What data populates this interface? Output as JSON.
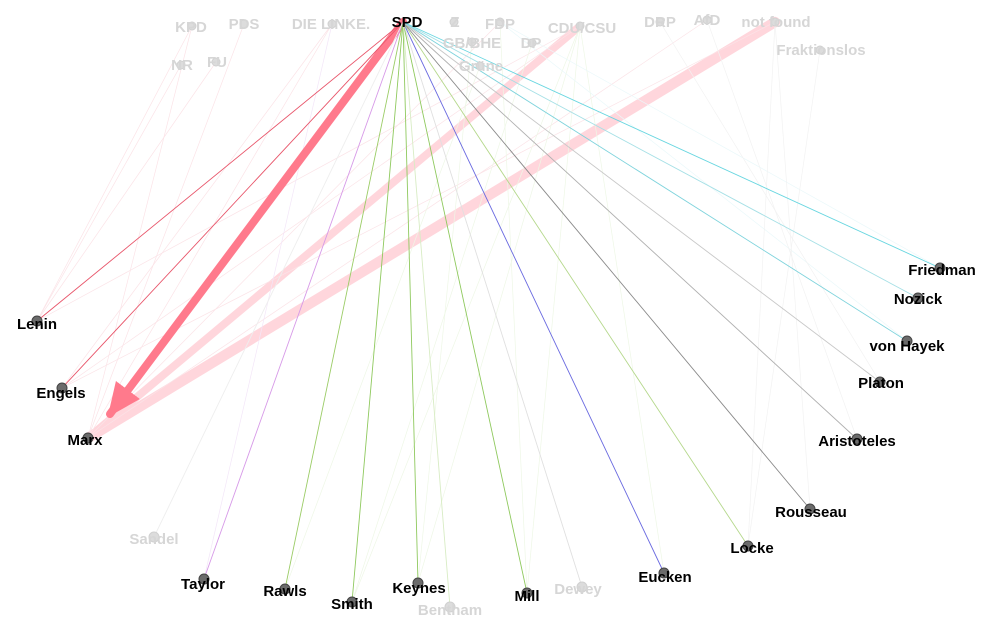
{
  "graph": {
    "source_parties": [
      {
        "id": "kpd",
        "label": "KPD",
        "active": false
      },
      {
        "id": "pds",
        "label": "PDS",
        "active": false
      },
      {
        "id": "linke",
        "label": "DIE LINKE.",
        "active": false
      },
      {
        "id": "spd",
        "label": "SPD",
        "active": true
      },
      {
        "id": "z",
        "label": "Z",
        "active": false
      },
      {
        "id": "fdp",
        "label": "FDP",
        "active": false
      },
      {
        "id": "cdu",
        "label": "CDU/CSU",
        "active": false
      },
      {
        "id": "drp",
        "label": "DRP",
        "active": false
      },
      {
        "id": "afd",
        "label": "AfD",
        "active": false
      },
      {
        "id": "notfound",
        "label": "not found",
        "active": false
      },
      {
        "id": "nr",
        "label": "NR",
        "active": false
      },
      {
        "id": "fu",
        "label": "FU",
        "active": false
      },
      {
        "id": "gbbhe",
        "label": "GB/BHE",
        "active": false
      },
      {
        "id": "dp",
        "label": "DP",
        "active": false
      },
      {
        "id": "gruene",
        "label": "Grüne",
        "active": false
      },
      {
        "id": "fraktionslos",
        "label": "Fraktionslos",
        "active": false
      }
    ],
    "thinkers": [
      {
        "id": "friedman",
        "label": "Friedman",
        "active": true
      },
      {
        "id": "nozick",
        "label": "Nozick",
        "active": true
      },
      {
        "id": "hayek",
        "label": "von Hayek",
        "active": true
      },
      {
        "id": "platon",
        "label": "Platon",
        "active": true
      },
      {
        "id": "aristoteles",
        "label": "Aristoteles",
        "active": true
      },
      {
        "id": "rousseau",
        "label": "Rousseau",
        "active": true
      },
      {
        "id": "locke",
        "label": "Locke",
        "active": true
      },
      {
        "id": "eucken",
        "label": "Eucken",
        "active": true
      },
      {
        "id": "dewey",
        "label": "Dewey",
        "active": false
      },
      {
        "id": "mill",
        "label": "Mill",
        "active": true
      },
      {
        "id": "bentham",
        "label": "Bentham",
        "active": false
      },
      {
        "id": "keynes",
        "label": "Keynes",
        "active": true
      },
      {
        "id": "smith",
        "label": "Smith",
        "active": true
      },
      {
        "id": "rawls",
        "label": "Rawls",
        "active": true
      },
      {
        "id": "taylor",
        "label": "Taylor",
        "active": true
      },
      {
        "id": "sandel",
        "label": "Sandel",
        "active": false
      },
      {
        "id": "marx",
        "label": "Marx",
        "active": true
      },
      {
        "id": "engels",
        "label": "Engels",
        "active": true
      },
      {
        "id": "lenin",
        "label": "Lenin",
        "active": true
      }
    ],
    "spd_edges": [
      {
        "target": "marx",
        "color": "#ff7a8c",
        "weight": 10
      },
      {
        "target": "engels",
        "color": "#e8556a",
        "weight": 1
      },
      {
        "target": "lenin",
        "color": "#e8556a",
        "weight": 1
      },
      {
        "target": "taylor",
        "color": "#d79ae8",
        "weight": 1
      },
      {
        "target": "rawls",
        "color": "#9bcc66",
        "weight": 1
      },
      {
        "target": "smith",
        "color": "#8fc95e",
        "weight": 1
      },
      {
        "target": "keynes",
        "color": "#8fc95e",
        "weight": 1
      },
      {
        "target": "mill",
        "color": "#8fc95e",
        "weight": 1
      },
      {
        "target": "eucken",
        "color": "#6a6ae0",
        "weight": 1
      },
      {
        "target": "locke",
        "color": "#b5d88c",
        "weight": 1
      },
      {
        "target": "rousseau",
        "color": "#8a8a8a",
        "weight": 1
      },
      {
        "target": "aristoteles",
        "color": "#b0b0b0",
        "weight": 1
      },
      {
        "target": "platon",
        "color": "#c8c8c8",
        "weight": 1
      },
      {
        "target": "hayek",
        "color": "#7ed3dc",
        "weight": 1
      },
      {
        "target": "nozick",
        "color": "#a6e0e6",
        "weight": 1
      },
      {
        "target": "friedman",
        "color": "#68d6e0",
        "weight": 1
      },
      {
        "target": "bentham",
        "color": "#d8ecc4",
        "weight": 1
      },
      {
        "target": "dewey",
        "color": "#e0e0e0",
        "weight": 1
      },
      {
        "target": "sandel",
        "color": "#eeeeee",
        "weight": 1
      }
    ],
    "faded_edges": [
      {
        "source": "cdu",
        "target": "marx",
        "color": "#ffd6dc",
        "weight": 6
      },
      {
        "source": "notfound",
        "target": "marx",
        "color": "#ffd6dc",
        "weight": 8
      },
      {
        "source": "kpd",
        "target": "marx",
        "color": "#fbe3e7",
        "weight": 1
      },
      {
        "source": "pds",
        "target": "marx",
        "color": "#fbe3e7",
        "weight": 1
      },
      {
        "source": "linke",
        "target": "marx",
        "color": "#fbe3e7",
        "weight": 1
      },
      {
        "source": "fdp",
        "target": "marx",
        "color": "#fbe3e7",
        "weight": 1
      },
      {
        "source": "afd",
        "target": "marx",
        "color": "#fbe3e7",
        "weight": 1
      },
      {
        "source": "nr",
        "target": "lenin",
        "color": "#fbe3e7",
        "weight": 1
      },
      {
        "source": "fu",
        "target": "lenin",
        "color": "#fbe3e7",
        "weight": 1
      },
      {
        "source": "kpd",
        "target": "lenin",
        "color": "#fbe3e7",
        "weight": 1
      },
      {
        "source": "cdu",
        "target": "lenin",
        "color": "#fbe3e7",
        "weight": 1
      },
      {
        "source": "notfound",
        "target": "engels",
        "color": "#fbe3e7",
        "weight": 1
      },
      {
        "source": "cdu",
        "target": "engels",
        "color": "#fbe3e7",
        "weight": 1
      },
      {
        "source": "linke",
        "target": "engels",
        "color": "#fbe3e7",
        "weight": 1
      },
      {
        "source": "cdu",
        "target": "keynes",
        "color": "#eef7e6",
        "weight": 1
      },
      {
        "source": "cdu",
        "target": "smith",
        "color": "#eef7e6",
        "weight": 1
      },
      {
        "source": "cdu",
        "target": "mill",
        "color": "#eef7e6",
        "weight": 1
      },
      {
        "source": "fdp",
        "target": "mill",
        "color": "#eef7e6",
        "weight": 1
      },
      {
        "source": "cdu",
        "target": "eucken",
        "color": "#eef7e6",
        "weight": 1
      },
      {
        "source": "fdp",
        "target": "friedman",
        "color": "#eaf8fa",
        "weight": 1
      },
      {
        "source": "fdp",
        "target": "hayek",
        "color": "#eaf8fa",
        "weight": 1
      },
      {
        "source": "notfound",
        "target": "locke",
        "color": "#f2f2f2",
        "weight": 1
      },
      {
        "source": "notfound",
        "target": "rousseau",
        "color": "#f2f2f2",
        "weight": 1
      },
      {
        "source": "afd",
        "target": "aristoteles",
        "color": "#f2f2f2",
        "weight": 1
      },
      {
        "source": "drp",
        "target": "platon",
        "color": "#f2f2f2",
        "weight": 1
      },
      {
        "source": "linke",
        "target": "taylor",
        "color": "#f3e6f8",
        "weight": 1
      },
      {
        "source": "gruene",
        "target": "rawls",
        "color": "#eef7e6",
        "weight": 1
      },
      {
        "source": "fraktionslos",
        "target": "locke",
        "color": "#f2f2f2",
        "weight": 1
      },
      {
        "source": "dp",
        "target": "smith",
        "color": "#eef7e6",
        "weight": 1
      },
      {
        "source": "gbbhe",
        "target": "keynes",
        "color": "#eef7e6",
        "weight": 1
      }
    ]
  }
}
